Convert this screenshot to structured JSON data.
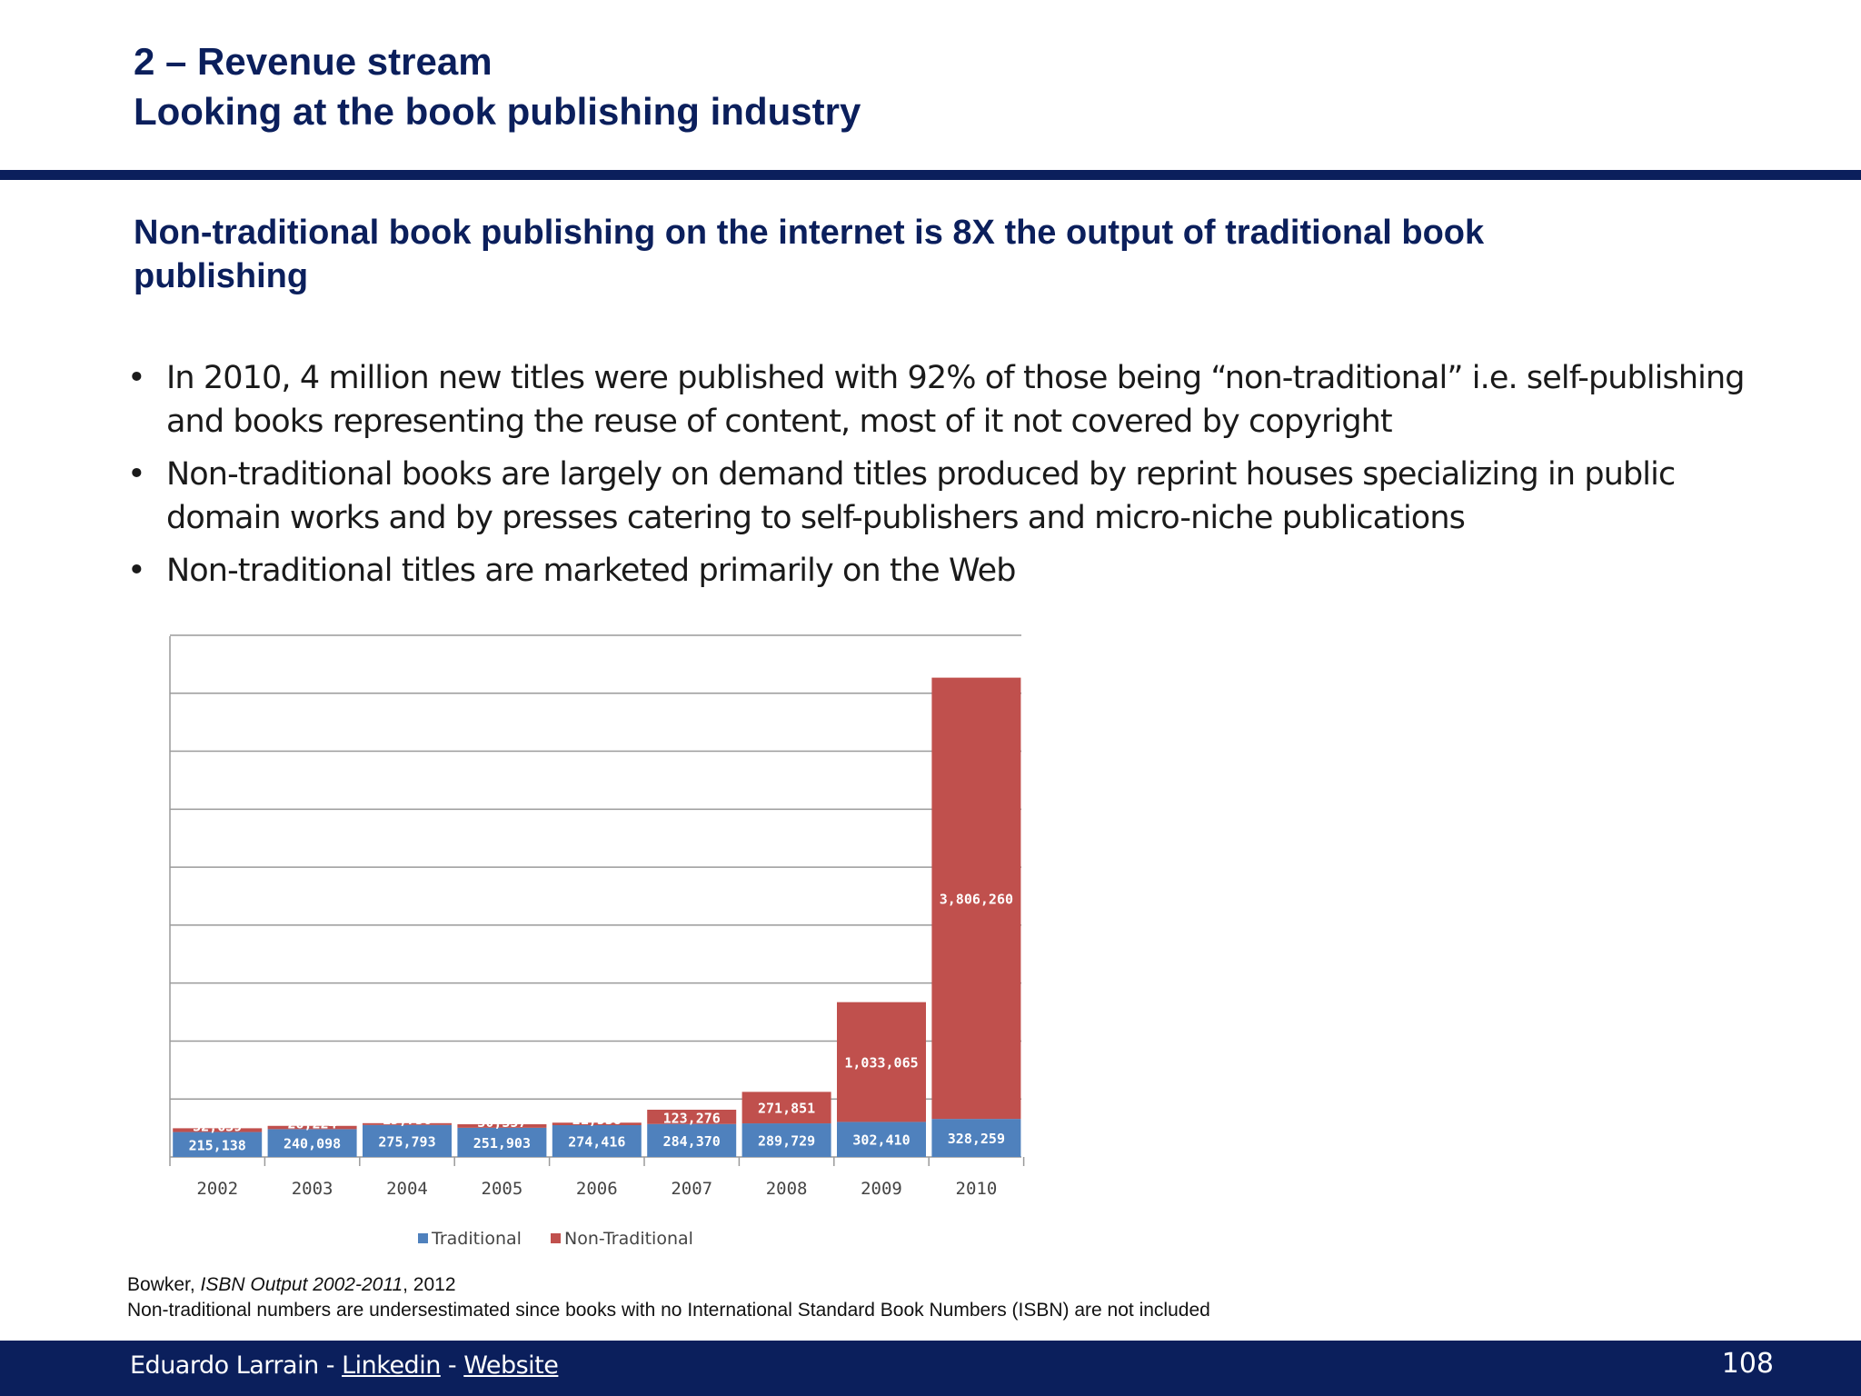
{
  "header": {
    "line1": "2 – Revenue stream",
    "line2": "Looking at the book publishing industry"
  },
  "subtitle": "Non-traditional book publishing on the internet is 8X the output of traditional book publishing",
  "bullets": [
    "In 2010, 4 million new titles were published with 92% of those being “non-traditional” i.e. self-publishing and books representing the reuse of content, most of it not covered by copyright",
    "Non-traditional books are largely on demand titles produced by reprint houses specializing in public domain works and by presses catering to self-publishers and micro-niche publications",
    "Non-traditional titles are marketed primarily on the Web"
  ],
  "bullet_char": "•",
  "chart_data": {
    "type": "bar",
    "stacked": true,
    "categories": [
      "2002",
      "2003",
      "2004",
      "2005",
      "2006",
      "2007",
      "2008",
      "2009",
      "2010"
    ],
    "series": [
      {
        "name": "Traditional",
        "color": "#4f81bd",
        "values": [
          215138,
          240098,
          275793,
          251903,
          274416,
          284370,
          289729,
          302410,
          328259
        ]
      },
      {
        "name": "Non-Traditional",
        "color": "#c0504d",
        "values": [
          32639,
          28224,
          15736,
          30357,
          21538,
          123276,
          271851,
          1033065,
          3806260
        ]
      }
    ],
    "value_labels": {
      "Traditional": [
        "215,138",
        "240,098",
        "275,793",
        "251,903",
        "274,416",
        "284,370",
        "289,729",
        "302,410",
        "328,259"
      ],
      "Non-Traditional": [
        "32,639",
        "28,224",
        "15,736",
        "30,357",
        "21,538",
        "123,276",
        "271,851",
        "1,033,065",
        "3,806,260"
      ]
    },
    "ylim": [
      0,
      4500000
    ],
    "grid": true,
    "legend_position": "bottom"
  },
  "source": {
    "author": "Bowker, ",
    "title": "ISBN Output 2002-2011",
    "year": ", 2012",
    "note": "Non-traditional numbers are undersestimated since books with no International Standard Book Numbers (ISBN) are not included"
  },
  "footer": {
    "author": "Eduardo Larrain - ",
    "sep": " - ",
    "linkedin": "Linkedin",
    "website": "Website",
    "page": "108"
  }
}
